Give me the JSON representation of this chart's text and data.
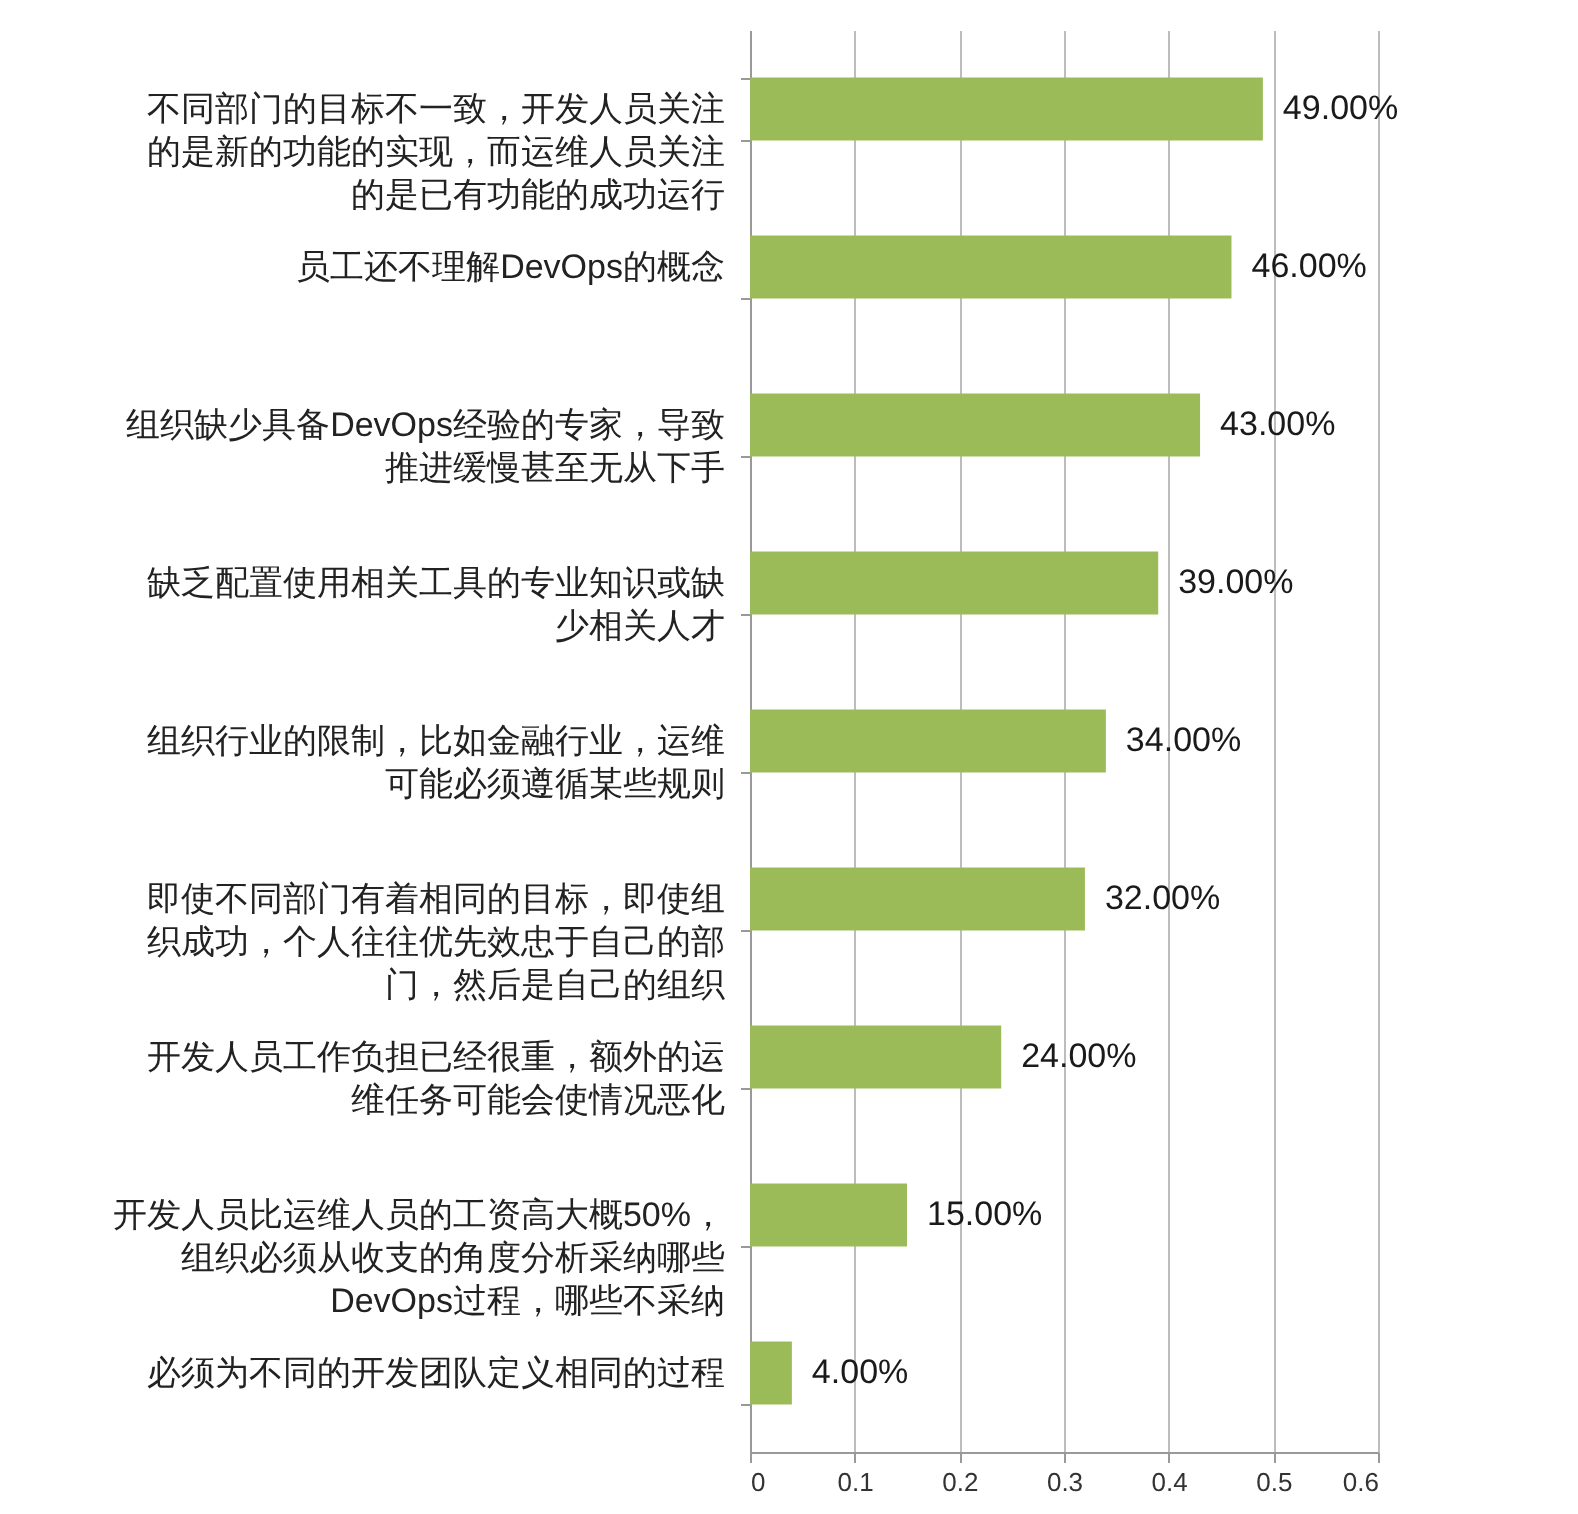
{
  "chart_data": {
    "type": "bar",
    "orientation": "horizontal",
    "categories": [
      "不同部门的目标不一致，开发人员关注的是新的功能的实现，而运维人员关注的是已有功能的成功运行",
      "员工还不理解DevOps的概念",
      "组织缺少具备DevOps经验的专家，导致推进缓慢甚至无从下手",
      "缺乏配置使用相关工具的专业知识或缺少相关人才",
      "组织行业的限制，比如金融行业，运维可能必须遵循某些规则",
      "即使不同部门有着相同的目标，即使组织成功，个人往往优先效忠于自己的部门，然后是自己的组织",
      "开发人员工作负担已经很重，额外的运维任务可能会使情况恶化",
      "开发人员比运维人员的工资高大概50%，组织必须从收支的角度分析采纳哪些DevOps过程，哪些不采纳",
      "必须为不同的开发团队定义相同的过程"
    ],
    "values": [
      0.49,
      0.46,
      0.43,
      0.39,
      0.34,
      0.32,
      0.24,
      0.15,
      0.04
    ],
    "value_labels": [
      "49.00%",
      "46.00%",
      "43.00%",
      "39.00%",
      "34.00%",
      "32.00%",
      "24.00%",
      "15.00%",
      "4.00%"
    ],
    "color": "#9bbb59",
    "xlim": [
      0,
      0.6
    ],
    "xticks": [
      0,
      0.1,
      0.2,
      0.3,
      0.4,
      0.5,
      0.6
    ],
    "grid": "x"
  }
}
